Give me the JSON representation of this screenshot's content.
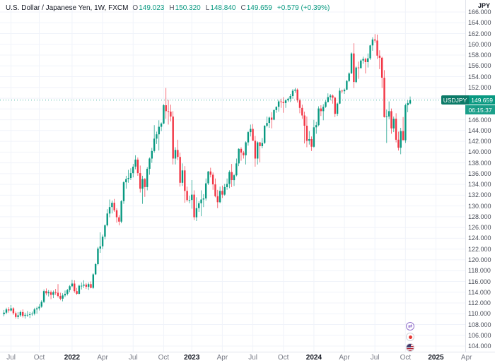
{
  "header": {
    "title": "U.S. Dollar / Japanese Yen, 1W, FXCM",
    "ohlc": [
      {
        "label": "O",
        "value": "149.023"
      },
      {
        "label": "H",
        "value": "150.320"
      },
      {
        "label": "L",
        "value": "148.840"
      },
      {
        "label": "C",
        "value": "149.659"
      }
    ],
    "change": "+0.579 (+0.39%)"
  },
  "price_label": {
    "symbol": "USDJPY",
    "price": "149.659",
    "countdown": "06:15:37"
  },
  "colors": {
    "up": "#089981",
    "down": "#f23645",
    "grid": "#f0f3fa",
    "axis_border": "#e0e3eb",
    "text": "#131722",
    "muted": "#787b86",
    "badge_symbol": "#0b7a68",
    "badge_price": "#089981"
  },
  "event_markers": [
    {
      "name": "swap-arrows",
      "glyph": "⇄"
    },
    {
      "name": "japan-flag"
    },
    {
      "name": "us-flag"
    }
  ],
  "chart_data": {
    "type": "candlestick",
    "symbol": "USD/JPY",
    "exchange": "FXCM",
    "timeframe": "1W",
    "ylabel": "JPY",
    "ylim": [
      104,
      166
    ],
    "ytick_step": 2,
    "ytick_decimals": 3,
    "last_price": 149.659,
    "up_color": "#089981",
    "down_color": "#f23645",
    "grid_color": "#f0f3fa",
    "x_axis_labels": [
      {
        "text": "Jul",
        "week": 3
      },
      {
        "text": "Oct",
        "week": 15
      },
      {
        "text": "2022",
        "week": 29,
        "year": true
      },
      {
        "text": "Apr",
        "week": 42
      },
      {
        "text": "Jul",
        "week": 55
      },
      {
        "text": "Oct",
        "week": 68
      },
      {
        "text": "2023",
        "week": 80,
        "year": true
      },
      {
        "text": "Apr",
        "week": 93
      },
      {
        "text": "Jul",
        "week": 106
      },
      {
        "text": "Oct",
        "week": 119
      },
      {
        "text": "2024",
        "week": 132,
        "year": true
      },
      {
        "text": "Apr",
        "week": 145
      },
      {
        "text": "Jul",
        "week": 158
      },
      {
        "text": "Oct",
        "week": 171
      },
      {
        "text": "2025",
        "week": 184,
        "year": true
      },
      {
        "text": "Apr",
        "week": 197
      }
    ],
    "candles": [
      [
        109.9,
        110.7,
        109.5,
        110.2
      ],
      [
        110.2,
        111.1,
        109.9,
        110.8
      ],
      [
        110.8,
        111.2,
        110.2,
        110.6
      ],
      [
        110.6,
        111.6,
        110.4,
        111.0
      ],
      [
        111.0,
        111.2,
        109.8,
        110.1
      ],
      [
        110.1,
        110.4,
        109.1,
        109.4
      ],
      [
        109.4,
        110.3,
        109.0,
        109.7
      ],
      [
        109.7,
        110.6,
        109.4,
        110.3
      ],
      [
        110.3,
        110.8,
        109.3,
        109.6
      ],
      [
        109.6,
        110.2,
        109.1,
        109.8
      ],
      [
        109.8,
        110.5,
        109.4,
        109.8
      ],
      [
        109.8,
        110.3,
        109.2,
        109.9
      ],
      [
        109.9,
        110.4,
        109.6,
        110.0
      ],
      [
        110.0,
        111.1,
        109.7,
        110.8
      ],
      [
        110.8,
        111.3,
        110.0,
        111.0
      ],
      [
        111.0,
        111.8,
        110.6,
        111.3
      ],
      [
        111.3,
        112.5,
        111.1,
        112.2
      ],
      [
        112.2,
        114.5,
        112.0,
        114.2
      ],
      [
        114.2,
        114.7,
        113.4,
        113.8
      ],
      [
        113.8,
        114.4,
        113.2,
        114.0
      ],
      [
        114.0,
        114.3,
        112.7,
        113.5
      ],
      [
        113.5,
        114.3,
        112.9,
        114.0
      ],
      [
        114.0,
        114.6,
        113.5,
        113.9
      ],
      [
        113.9,
        115.5,
        113.0,
        113.3
      ],
      [
        113.3,
        113.9,
        112.5,
        112.8
      ],
      [
        112.8,
        113.8,
        112.3,
        113.4
      ],
      [
        113.4,
        114.3,
        113.1,
        113.7
      ],
      [
        113.7,
        114.6,
        113.4,
        114.4
      ],
      [
        114.4,
        115.3,
        114.0,
        115.1
      ],
      [
        115.1,
        116.3,
        114.9,
        115.6
      ],
      [
        115.6,
        116.2,
        113.9,
        114.2
      ],
      [
        114.2,
        114.8,
        113.5,
        113.7
      ],
      [
        113.7,
        115.4,
        113.6,
        115.2
      ],
      [
        115.2,
        115.8,
        114.5,
        115.2
      ],
      [
        115.2,
        116.2,
        114.8,
        115.4
      ],
      [
        115.4,
        115.7,
        114.6,
        115.0
      ],
      [
        115.0,
        115.8,
        114.4,
        115.5
      ],
      [
        115.5,
        116.0,
        114.7,
        114.8
      ],
      [
        114.8,
        117.5,
        114.6,
        117.3
      ],
      [
        117.3,
        119.4,
        117.2,
        119.2
      ],
      [
        119.2,
        122.4,
        119.0,
        122.1
      ],
      [
        122.1,
        125.1,
        121.3,
        122.5
      ],
      [
        122.5,
        124.7,
        122.0,
        124.3
      ],
      [
        124.3,
        126.6,
        123.8,
        126.4
      ],
      [
        126.4,
        129.4,
        126.2,
        128.6
      ],
      [
        128.6,
        131.2,
        127.9,
        129.8
      ],
      [
        129.8,
        131.0,
        128.6,
        130.6
      ],
      [
        130.6,
        131.3,
        128.9,
        129.2
      ],
      [
        129.2,
        129.6,
        126.9,
        127.9
      ],
      [
        127.9,
        128.3,
        126.4,
        127.1
      ],
      [
        127.1,
        131.1,
        126.8,
        130.9
      ],
      [
        130.9,
        134.6,
        130.4,
        134.4
      ],
      [
        134.4,
        135.6,
        133.2,
        135.0
      ],
      [
        135.0,
        136.7,
        134.3,
        135.2
      ],
      [
        135.2,
        137.0,
        134.8,
        136.1
      ],
      [
        136.1,
        137.8,
        135.3,
        137.3
      ],
      [
        137.3,
        139.4,
        136.8,
        138.6
      ],
      [
        138.6,
        139.0,
        135.6,
        136.1
      ],
      [
        136.1,
        137.5,
        132.5,
        133.2
      ],
      [
        133.2,
        135.6,
        130.4,
        135.0
      ],
      [
        135.0,
        135.2,
        131.7,
        133.5
      ],
      [
        133.5,
        137.2,
        132.9,
        136.9
      ],
      [
        136.9,
        139.0,
        135.8,
        138.8
      ],
      [
        138.8,
        140.8,
        138.0,
        140.2
      ],
      [
        140.2,
        145.0,
        139.9,
        142.5
      ],
      [
        142.5,
        143.8,
        141.5,
        143.3
      ],
      [
        143.3,
        145.9,
        140.3,
        144.7
      ],
      [
        144.7,
        145.5,
        143.9,
        145.3
      ],
      [
        145.3,
        148.9,
        145.2,
        148.7
      ],
      [
        148.7,
        151.9,
        146.2,
        147.6
      ],
      [
        147.6,
        149.7,
        145.1,
        147.5
      ],
      [
        147.5,
        148.8,
        145.7,
        146.6
      ],
      [
        146.6,
        147.6,
        137.7,
        138.8
      ],
      [
        138.8,
        140.9,
        137.7,
        140.4
      ],
      [
        140.4,
        142.3,
        138.5,
        139.1
      ],
      [
        139.1,
        139.9,
        133.6,
        134.3
      ],
      [
        134.3,
        137.9,
        133.7,
        136.6
      ],
      [
        136.6,
        137.4,
        130.6,
        132.8
      ],
      [
        132.8,
        133.6,
        130.8,
        131.1
      ],
      [
        131.1,
        131.9,
        130.5,
        131.1
      ],
      [
        131.1,
        134.8,
        129.5,
        132.1
      ],
      [
        132.1,
        132.9,
        127.4,
        127.9
      ],
      [
        127.9,
        131.6,
        127.2,
        129.6
      ],
      [
        129.6,
        130.9,
        128.9,
        130.5
      ],
      [
        130.5,
        132.9,
        128.1,
        131.2
      ],
      [
        131.2,
        132.2,
        129.8,
        131.4
      ],
      [
        131.4,
        135.1,
        131.0,
        134.2
      ],
      [
        134.2,
        136.5,
        133.9,
        136.4
      ],
      [
        136.4,
        137.1,
        135.3,
        135.8
      ],
      [
        135.8,
        136.2,
        133.0,
        134.0
      ],
      [
        134.0,
        135.1,
        131.6,
        131.8
      ],
      [
        131.8,
        133.0,
        129.6,
        130.7
      ],
      [
        130.7,
        133.6,
        130.5,
        132.8
      ],
      [
        132.8,
        133.8,
        131.5,
        132.1
      ],
      [
        132.1,
        134.1,
        131.9,
        133.5
      ],
      [
        133.5,
        135.1,
        133.0,
        134.1
      ],
      [
        134.1,
        136.6,
        133.3,
        136.3
      ],
      [
        136.3,
        137.8,
        133.5,
        134.8
      ],
      [
        134.8,
        135.9,
        133.7,
        135.7
      ],
      [
        135.7,
        138.8,
        135.5,
        137.9
      ],
      [
        137.9,
        140.7,
        137.4,
        140.6
      ],
      [
        140.6,
        140.9,
        138.4,
        139.9
      ],
      [
        139.9,
        140.2,
        138.8,
        139.4
      ],
      [
        139.4,
        142.0,
        137.7,
        141.8
      ],
      [
        141.8,
        143.9,
        141.2,
        143.7
      ],
      [
        143.7,
        145.1,
        142.9,
        144.3
      ],
      [
        144.3,
        145.2,
        142.1,
        142.1
      ],
      [
        142.1,
        143.0,
        137.3,
        138.8
      ],
      [
        138.8,
        142.0,
        137.7,
        141.8
      ],
      [
        141.8,
        141.9,
        138.1,
        141.1
      ],
      [
        141.1,
        142.6,
        140.7,
        141.7
      ],
      [
        141.7,
        145.0,
        141.5,
        144.9
      ],
      [
        144.9,
        146.6,
        144.6,
        145.4
      ],
      [
        145.4,
        146.6,
        144.5,
        146.4
      ],
      [
        146.4,
        147.4,
        144.4,
        146.0
      ],
      [
        146.0,
        147.9,
        145.9,
        147.8
      ],
      [
        147.8,
        148.5,
        147.3,
        148.4
      ],
      [
        148.4,
        149.7,
        147.5,
        149.4
      ],
      [
        149.4,
        149.9,
        148.2,
        149.3
      ],
      [
        149.3,
        150.2,
        147.3,
        149.1
      ],
      [
        149.1,
        149.8,
        148.2,
        149.6
      ],
      [
        149.6,
        150.1,
        149.3,
        149.9
      ],
      [
        149.9,
        150.8,
        149.3,
        150.4
      ],
      [
        150.4,
        151.7,
        149.9,
        151.4
      ],
      [
        151.4,
        151.9,
        151.0,
        151.6
      ],
      [
        151.6,
        151.8,
        149.2,
        149.6
      ],
      [
        149.6,
        149.9,
        147.2,
        148.2
      ],
      [
        148.2,
        148.8,
        146.2,
        146.8
      ],
      [
        146.8,
        147.5,
        141.6,
        144.9
      ],
      [
        144.9,
        146.6,
        140.9,
        142.1
      ],
      [
        142.1,
        143.9,
        141.4,
        142.4
      ],
      [
        142.4,
        142.9,
        140.2,
        141.0
      ],
      [
        141.0,
        146.0,
        140.8,
        144.6
      ],
      [
        144.6,
        145.6,
        143.4,
        145.0
      ],
      [
        145.0,
        148.5,
        144.8,
        148.1
      ],
      [
        148.1,
        148.7,
        146.7,
        147.6
      ],
      [
        147.6,
        148.9,
        145.9,
        148.4
      ],
      [
        148.4,
        149.6,
        148.2,
        149.3
      ],
      [
        149.3,
        150.9,
        149.2,
        150.2
      ],
      [
        150.2,
        150.8,
        149.6,
        150.5
      ],
      [
        150.5,
        150.7,
        149.0,
        150.1
      ],
      [
        150.1,
        150.3,
        146.5,
        147.1
      ],
      [
        147.1,
        149.2,
        146.7,
        149.0
      ],
      [
        149.0,
        151.9,
        148.9,
        151.4
      ],
      [
        151.4,
        151.6,
        150.9,
        151.3
      ],
      [
        151.3,
        151.8,
        150.8,
        151.6
      ],
      [
        151.6,
        153.4,
        151.5,
        153.2
      ],
      [
        153.2,
        154.8,
        153.0,
        154.6
      ],
      [
        154.6,
        158.5,
        154.5,
        158.3
      ],
      [
        158.3,
        160.2,
        151.9,
        153.0
      ],
      [
        153.0,
        155.9,
        152.8,
        155.7
      ],
      [
        155.7,
        156.8,
        153.6,
        155.6
      ],
      [
        155.6,
        157.2,
        155.5,
        157.0
      ],
      [
        157.0,
        157.7,
        156.4,
        157.3
      ],
      [
        157.3,
        157.5,
        154.6,
        156.7
      ],
      [
        156.7,
        158.3,
        155.7,
        157.4
      ],
      [
        157.4,
        159.9,
        157.1,
        159.8
      ],
      [
        159.8,
        161.3,
        158.8,
        160.9
      ],
      [
        160.9,
        161.9,
        160.3,
        160.7
      ],
      [
        160.7,
        161.8,
        157.3,
        157.9
      ],
      [
        157.9,
        158.9,
        155.4,
        157.5
      ],
      [
        157.5,
        157.7,
        151.9,
        153.8
      ],
      [
        153.8,
        155.2,
        146.4,
        146.5
      ],
      [
        146.5,
        147.9,
        141.7,
        146.6
      ],
      [
        146.6,
        149.4,
        146.1,
        147.6
      ],
      [
        147.6,
        148.1,
        143.4,
        144.4
      ],
      [
        144.4,
        146.6,
        143.7,
        146.2
      ],
      [
        146.2,
        147.2,
        141.8,
        142.3
      ],
      [
        142.3,
        143.8,
        140.3,
        140.8
      ],
      [
        140.8,
        144.5,
        139.6,
        143.9
      ],
      [
        143.9,
        146.5,
        142.9,
        142.2
      ],
      [
        142.2,
        149.0,
        141.7,
        148.7
      ],
      [
        148.7,
        149.6,
        147.4,
        149.1
      ],
      [
        149.023,
        150.32,
        148.84,
        149.659
      ]
    ]
  }
}
